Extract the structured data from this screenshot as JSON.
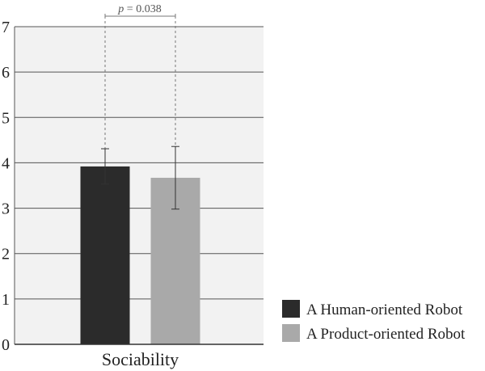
{
  "chart_data": {
    "type": "bar",
    "categories": [
      "Sociability"
    ],
    "series": [
      {
        "name": "A Human-oriented Robot",
        "values": [
          3.92
        ],
        "error": [
          [
            3.53,
            4.31
          ]
        ],
        "color": "#2b2b2b"
      },
      {
        "name": "A Product-oriented Robot",
        "values": [
          3.67
        ],
        "error": [
          [
            2.98,
            4.36
          ]
        ],
        "color": "#a9a9a9"
      }
    ],
    "ylim": [
      0,
      7
    ],
    "yticks": [
      "0",
      "1",
      "2",
      "3",
      "4",
      "5",
      "6",
      "7"
    ],
    "grid": true,
    "plot_background": "#f2f2f2",
    "annotation": {
      "label_italic": "p",
      "label_rest": " = 0.038"
    },
    "legend": "bottom-right"
  }
}
